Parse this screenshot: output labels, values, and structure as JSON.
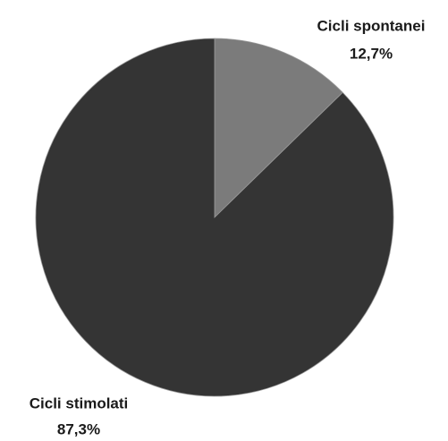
{
  "chart_data": {
    "type": "pie",
    "categories": [
      "Cicli spontanei",
      "Cicli stimolati"
    ],
    "values": [
      12.7,
      87.3
    ],
    "value_labels": [
      "12,7%",
      "87,3%"
    ],
    "colors": [
      "#7b7b7b",
      "#343434"
    ]
  }
}
